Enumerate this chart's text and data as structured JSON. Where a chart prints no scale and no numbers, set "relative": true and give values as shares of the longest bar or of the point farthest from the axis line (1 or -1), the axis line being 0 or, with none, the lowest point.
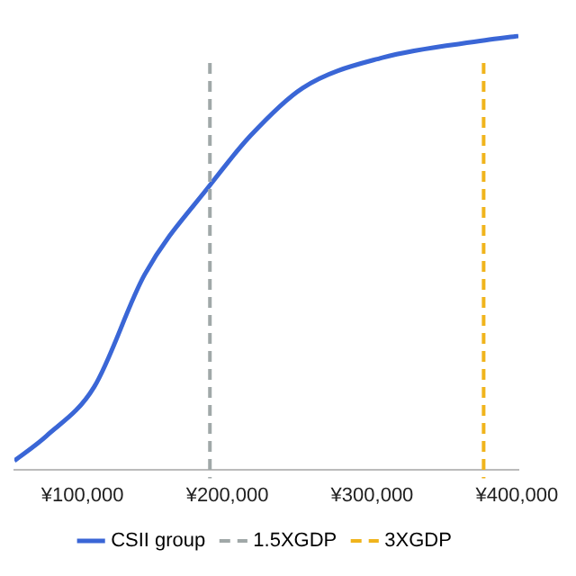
{
  "chart_data": {
    "type": "line",
    "relative": true,
    "x": [
      53000,
      75000,
      108000,
      143000,
      189000,
      216000,
      252000,
      307000,
      378000,
      401000
    ],
    "series": [
      {
        "name": "CSII group",
        "color": "#3a66d6",
        "values": [
          0.02,
          0.077,
          0.19,
          0.45,
          0.66,
          0.77,
          0.88,
          0.95,
          0.99,
          1.0
        ]
      }
    ],
    "xlim": [
      53000,
      401000
    ],
    "xticks": [
      {
        "value": 100000,
        "label": "¥100,000"
      },
      {
        "value": 200000,
        "label": "¥200,000"
      },
      {
        "value": 300000,
        "label": "¥300,000"
      },
      {
        "value": 400000,
        "label": "¥400,000"
      }
    ],
    "ref_lines": [
      {
        "axis": "x",
        "value": 188000,
        "label": "1.5XGDP",
        "color": "#a0a8a8",
        "line_style": "dashed"
      },
      {
        "axis": "x",
        "value": 377000,
        "label": "3XGDP",
        "color": "#f0b41c",
        "line_style": "dashed"
      }
    ],
    "grid": false,
    "legend": "bottom",
    "marker": "none",
    "line_style": "solid"
  }
}
